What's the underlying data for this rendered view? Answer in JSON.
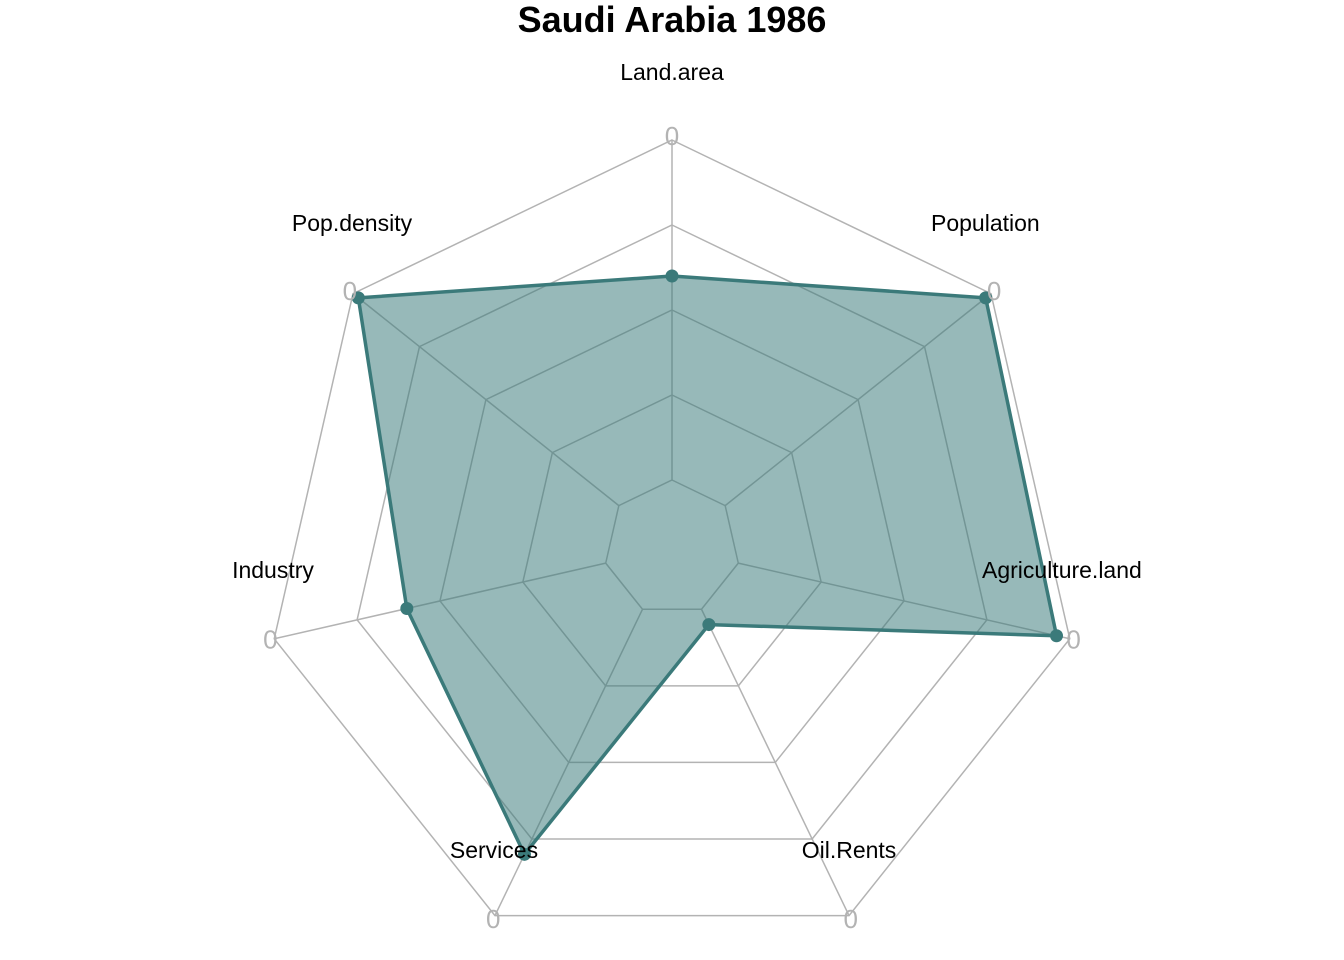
{
  "chart_data": {
    "type": "radar",
    "title": "Saudi Arabia 1986",
    "axes": [
      "Land.area",
      "Population",
      "Agriculture.land",
      "Oil.Rents",
      "Services",
      "Industry",
      "Pop.density"
    ],
    "axis_tick_label": "0",
    "range": [
      0,
      1
    ],
    "grid_levels": 5,
    "values": [
      0.6,
      0.98,
      0.96,
      0.05,
      0.8,
      0.6,
      0.98
    ],
    "colors": {
      "series_line": "#3b7a7a",
      "series_fill": "#3b7a7a",
      "grid": "#b3b3b3",
      "tick_label": "#b3b3b3"
    }
  }
}
